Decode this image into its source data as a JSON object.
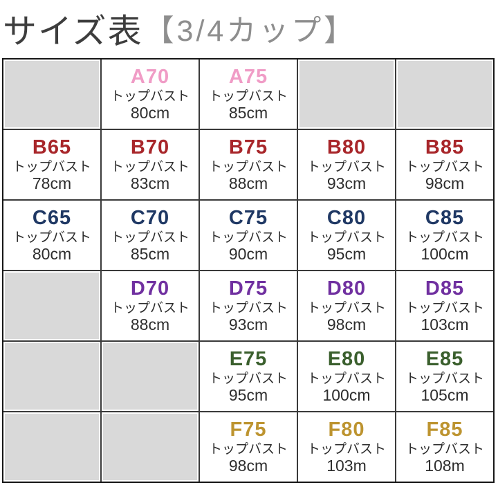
{
  "title": {
    "main": "サイズ表",
    "sub": "【3/4カップ】"
  },
  "colors": {
    "title_main": "#3d3d3d",
    "title_sub": "#8e8e8e",
    "grid_line": "#3a3a3a",
    "outer_border": "#161616",
    "empty_cell": "#d9d9d9",
    "cell_text": "#2d2d2d",
    "cup_a": "#f09cc6",
    "cup_b": "#a8262a",
    "cup_c": "#1f3864",
    "cup_d": "#7030a0",
    "cup_e": "#3a5f2d",
    "cup_f": "#bd9430"
  },
  "table": {
    "columns": 5,
    "rows": [
      {
        "cup": "A",
        "color": "#f09cc6",
        "cells": [
          {
            "empty": true
          },
          {
            "size": "A70",
            "label": "トップバスト",
            "value": "80cm"
          },
          {
            "size": "A75",
            "label": "トップバスト",
            "value": "85cm"
          },
          {
            "empty": true
          },
          {
            "empty": true
          }
        ]
      },
      {
        "cup": "B",
        "color": "#a8262a",
        "cells": [
          {
            "size": "B65",
            "label": "トップバスト",
            "value": "78cm"
          },
          {
            "size": "B70",
            "label": "トップバスト",
            "value": "83cm"
          },
          {
            "size": "B75",
            "label": "トップバスト",
            "value": "88cm"
          },
          {
            "size": "B80",
            "label": "トップバスト",
            "value": "93cm"
          },
          {
            "size": "B85",
            "label": "トップバスト",
            "value": "98cm"
          }
        ]
      },
      {
        "cup": "C",
        "color": "#1f3864",
        "cells": [
          {
            "size": "C65",
            "label": "トップバスト",
            "value": "80cm"
          },
          {
            "size": "C70",
            "label": "トップバスト",
            "value": "85cm"
          },
          {
            "size": "C75",
            "label": "トップバスト",
            "value": "90cm"
          },
          {
            "size": "C80",
            "label": "トップバスト",
            "value": "95cm"
          },
          {
            "size": "C85",
            "label": "トップバスト",
            "value": "100cm"
          }
        ]
      },
      {
        "cup": "D",
        "color": "#7030a0",
        "cells": [
          {
            "empty": true
          },
          {
            "size": "D70",
            "label": "トップバスト",
            "value": "88cm"
          },
          {
            "size": "D75",
            "label": "トップバスト",
            "value": "93cm"
          },
          {
            "size": "D80",
            "label": "トップバスト",
            "value": "98cm"
          },
          {
            "size": "D85",
            "label": "トップバスト",
            "value": "103cm"
          }
        ]
      },
      {
        "cup": "E",
        "color": "#3a5f2d",
        "cells": [
          {
            "empty": true
          },
          {
            "empty": true
          },
          {
            "size": "E75",
            "label": "トップバスト",
            "value": "95cm"
          },
          {
            "size": "E80",
            "label": "トップバスト",
            "value": "100cm"
          },
          {
            "size": "E85",
            "label": "トップバスト",
            "value": "105cm"
          }
        ]
      },
      {
        "cup": "F",
        "color": "#bd9430",
        "cells": [
          {
            "empty": true
          },
          {
            "empty": true
          },
          {
            "size": "F75",
            "label": "トップバスト",
            "value": "98cm"
          },
          {
            "size": "F80",
            "label": "トップバスト",
            "value": "103m"
          },
          {
            "size": "F85",
            "label": "トップバスト",
            "value": "108m"
          }
        ]
      }
    ]
  }
}
